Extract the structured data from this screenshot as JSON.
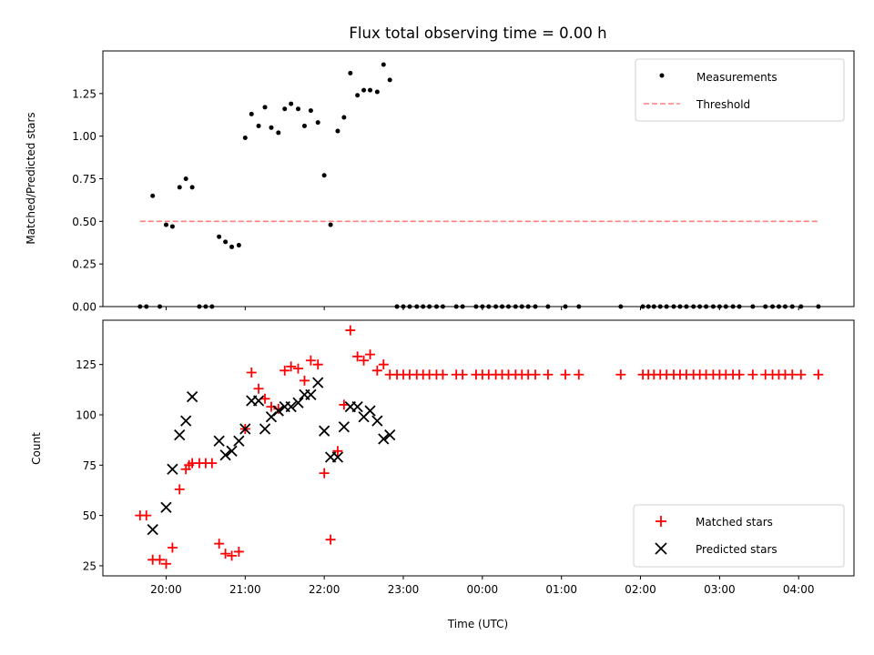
{
  "chart_data": [
    {
      "type": "scatter",
      "title": "Flux total observing time = 0.00 h",
      "xlabel": "",
      "ylabel": "Matched/Predicted stars",
      "x_unit": "hours (UTC, continuing past midnight)",
      "xlim": [
        19.2,
        28.7
      ],
      "ylim": [
        0.0,
        1.5
      ],
      "yticks": [
        "0.00",
        "0.25",
        "0.50",
        "0.75",
        "1.00",
        "1.25"
      ],
      "legend": {
        "position": "upper right",
        "entries": [
          "Measurements",
          "Threshold"
        ]
      },
      "series": [
        {
          "name": "Measurements",
          "marker": "dot",
          "color": "#000000",
          "points": [
            [
              19.67,
              0.0
            ],
            [
              19.75,
              0.0
            ],
            [
              19.83,
              0.65
            ],
            [
              19.92,
              0.0
            ],
            [
              20.0,
              0.48
            ],
            [
              20.08,
              0.47
            ],
            [
              20.17,
              0.7
            ],
            [
              20.25,
              0.75
            ],
            [
              20.33,
              0.7
            ],
            [
              20.42,
              0.0
            ],
            [
              20.5,
              0.0
            ],
            [
              20.58,
              0.0
            ],
            [
              20.67,
              0.41
            ],
            [
              20.75,
              0.38
            ],
            [
              20.83,
              0.35
            ],
            [
              20.92,
              0.36
            ],
            [
              21.0,
              0.99
            ],
            [
              21.08,
              1.13
            ],
            [
              21.17,
              1.06
            ],
            [
              21.25,
              1.17
            ],
            [
              21.33,
              1.05
            ],
            [
              21.42,
              1.02
            ],
            [
              21.5,
              1.16
            ],
            [
              21.58,
              1.19
            ],
            [
              21.67,
              1.16
            ],
            [
              21.75,
              1.06
            ],
            [
              21.83,
              1.15
            ],
            [
              21.92,
              1.08
            ],
            [
              22.0,
              0.77
            ],
            [
              22.08,
              0.48
            ],
            [
              22.17,
              1.03
            ],
            [
              22.25,
              1.11
            ],
            [
              22.33,
              1.37
            ],
            [
              22.42,
              1.24
            ],
            [
              22.5,
              1.27
            ],
            [
              22.58,
              1.27
            ],
            [
              22.67,
              1.26
            ],
            [
              22.75,
              1.42
            ],
            [
              22.83,
              1.33
            ],
            [
              22.92,
              0.0
            ],
            [
              23.0,
              0.0
            ],
            [
              23.08,
              0.0
            ],
            [
              23.17,
              0.0
            ],
            [
              23.25,
              0.0
            ],
            [
              23.33,
              0.0
            ],
            [
              23.42,
              0.0
            ],
            [
              23.5,
              0.0
            ],
            [
              23.67,
              0.0
            ],
            [
              23.75,
              0.0
            ],
            [
              23.92,
              0.0
            ],
            [
              24.0,
              0.0
            ],
            [
              24.08,
              0.0
            ],
            [
              24.17,
              0.0
            ],
            [
              24.25,
              0.0
            ],
            [
              24.33,
              0.0
            ],
            [
              24.42,
              0.0
            ],
            [
              24.5,
              0.0
            ],
            [
              24.58,
              0.0
            ],
            [
              24.67,
              0.0
            ],
            [
              24.83,
              0.0
            ],
            [
              25.05,
              0.0
            ],
            [
              25.22,
              0.0
            ],
            [
              25.75,
              0.0
            ],
            [
              26.03,
              0.0
            ],
            [
              26.1,
              0.0
            ],
            [
              26.17,
              0.0
            ],
            [
              26.25,
              0.0
            ],
            [
              26.33,
              0.0
            ],
            [
              26.42,
              0.0
            ],
            [
              26.5,
              0.0
            ],
            [
              26.58,
              0.0
            ],
            [
              26.67,
              0.0
            ],
            [
              26.75,
              0.0
            ],
            [
              26.83,
              0.0
            ],
            [
              26.92,
              0.0
            ],
            [
              27.0,
              0.0
            ],
            [
              27.08,
              0.0
            ],
            [
              27.17,
              0.0
            ],
            [
              27.25,
              0.0
            ],
            [
              27.42,
              0.0
            ],
            [
              27.58,
              0.0
            ],
            [
              27.67,
              0.0
            ],
            [
              27.75,
              0.0
            ],
            [
              27.83,
              0.0
            ],
            [
              27.92,
              0.0
            ],
            [
              28.03,
              0.0
            ],
            [
              28.25,
              0.0
            ]
          ]
        },
        {
          "name": "Threshold",
          "style": "dashed",
          "color": "#ff7f7f",
          "points": [
            [
              19.67,
              0.5
            ],
            [
              28.25,
              0.5
            ]
          ]
        }
      ]
    },
    {
      "type": "scatter",
      "title": "",
      "xlabel": "Time (UTC)",
      "ylabel": "Count",
      "xlim": [
        19.2,
        28.7
      ],
      "ylim": [
        20,
        147
      ],
      "yticks": [
        "25",
        "50",
        "75",
        "100",
        "125"
      ],
      "xticks": [
        {
          "value": 20,
          "label": "20:00"
        },
        {
          "value": 21,
          "label": "21:00"
        },
        {
          "value": 22,
          "label": "22:00"
        },
        {
          "value": 23,
          "label": "23:00"
        },
        {
          "value": 24,
          "label": "00:00"
        },
        {
          "value": 25,
          "label": "01:00"
        },
        {
          "value": 26,
          "label": "02:00"
        },
        {
          "value": 27,
          "label": "03:00"
        },
        {
          "value": 28,
          "label": "04:00"
        }
      ],
      "legend": {
        "position": "lower right",
        "entries": [
          "Matched stars",
          "Predicted stars"
        ]
      },
      "series": [
        {
          "name": "Matched stars",
          "marker": "plus",
          "color": "#ff0000",
          "points": [
            [
              19.67,
              50
            ],
            [
              19.75,
              50
            ],
            [
              19.83,
              28
            ],
            [
              19.92,
              28
            ],
            [
              20.0,
              26
            ],
            [
              20.08,
              34
            ],
            [
              20.17,
              63
            ],
            [
              20.25,
              73
            ],
            [
              20.29,
              75
            ],
            [
              20.33,
              76
            ],
            [
              20.42,
              76
            ],
            [
              20.5,
              76
            ],
            [
              20.58,
              76
            ],
            [
              20.67,
              36
            ],
            [
              20.75,
              31
            ],
            [
              20.83,
              30
            ],
            [
              20.92,
              32
            ],
            [
              21.0,
              93
            ],
            [
              21.08,
              121
            ],
            [
              21.17,
              113
            ],
            [
              21.25,
              108
            ],
            [
              21.33,
              104
            ],
            [
              21.42,
              103
            ],
            [
              21.5,
              122
            ],
            [
              21.58,
              124
            ],
            [
              21.67,
              123
            ],
            [
              21.75,
              117
            ],
            [
              21.83,
              127
            ],
            [
              21.92,
              125
            ],
            [
              22.0,
              71
            ],
            [
              22.08,
              38
            ],
            [
              22.17,
              82
            ],
            [
              22.25,
              105
            ],
            [
              22.33,
              142
            ],
            [
              22.42,
              129
            ],
            [
              22.5,
              127
            ],
            [
              22.58,
              130
            ],
            [
              22.67,
              122
            ],
            [
              22.75,
              125
            ],
            [
              22.83,
              120
            ],
            [
              22.92,
              120
            ],
            [
              23.0,
              120
            ],
            [
              23.08,
              120
            ],
            [
              23.17,
              120
            ],
            [
              23.25,
              120
            ],
            [
              23.33,
              120
            ],
            [
              23.42,
              120
            ],
            [
              23.5,
              120
            ],
            [
              23.67,
              120
            ],
            [
              23.75,
              120
            ],
            [
              23.92,
              120
            ],
            [
              24.0,
              120
            ],
            [
              24.08,
              120
            ],
            [
              24.17,
              120
            ],
            [
              24.25,
              120
            ],
            [
              24.33,
              120
            ],
            [
              24.42,
              120
            ],
            [
              24.5,
              120
            ],
            [
              24.58,
              120
            ],
            [
              24.67,
              120
            ],
            [
              24.83,
              120
            ],
            [
              25.05,
              120
            ],
            [
              25.22,
              120
            ],
            [
              25.75,
              120
            ],
            [
              26.03,
              120
            ],
            [
              26.1,
              120
            ],
            [
              26.17,
              120
            ],
            [
              26.25,
              120
            ],
            [
              26.33,
              120
            ],
            [
              26.42,
              120
            ],
            [
              26.5,
              120
            ],
            [
              26.58,
              120
            ],
            [
              26.67,
              120
            ],
            [
              26.75,
              120
            ],
            [
              26.83,
              120
            ],
            [
              26.92,
              120
            ],
            [
              27.0,
              120
            ],
            [
              27.08,
              120
            ],
            [
              27.17,
              120
            ],
            [
              27.25,
              120
            ],
            [
              27.42,
              120
            ],
            [
              27.58,
              120
            ],
            [
              27.67,
              120
            ],
            [
              27.75,
              120
            ],
            [
              27.83,
              120
            ],
            [
              27.92,
              120
            ],
            [
              28.03,
              120
            ],
            [
              28.25,
              120
            ]
          ]
        },
        {
          "name": "Predicted stars",
          "marker": "x",
          "color": "#000000",
          "points": [
            [
              19.83,
              43
            ],
            [
              20.0,
              54
            ],
            [
              20.08,
              73
            ],
            [
              20.17,
              90
            ],
            [
              20.25,
              97
            ],
            [
              20.33,
              109
            ],
            [
              20.67,
              87
            ],
            [
              20.75,
              80
            ],
            [
              20.83,
              82
            ],
            [
              20.92,
              87
            ],
            [
              21.0,
              93
            ],
            [
              21.08,
              107
            ],
            [
              21.17,
              107
            ],
            [
              21.25,
              93
            ],
            [
              21.33,
              99
            ],
            [
              21.42,
              102
            ],
            [
              21.5,
              104
            ],
            [
              21.58,
              104
            ],
            [
              21.67,
              106
            ],
            [
              21.75,
              110
            ],
            [
              21.83,
              110
            ],
            [
              21.92,
              116
            ],
            [
              22.0,
              92
            ],
            [
              22.08,
              79
            ],
            [
              22.17,
              79
            ],
            [
              22.25,
              94
            ],
            [
              22.33,
              104
            ],
            [
              22.42,
              104
            ],
            [
              22.5,
              99
            ],
            [
              22.58,
              102
            ],
            [
              22.67,
              97
            ],
            [
              22.75,
              88
            ],
            [
              22.83,
              90
            ]
          ]
        }
      ]
    }
  ]
}
